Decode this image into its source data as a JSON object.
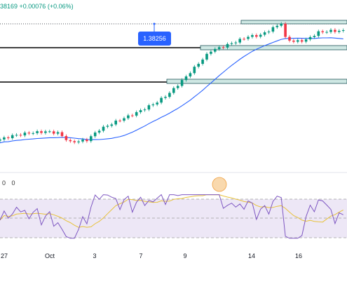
{
  "header": {
    "text": "38169 +0.00076 (+0.06%)"
  },
  "oscillator_header": {
    "text": "0 0"
  },
  "colors": {
    "up": "#089981",
    "down": "#f23645",
    "ma": "#2962ff",
    "rsi": "#7e57c2",
    "signal": "#e8c23a",
    "band": "#ede7f6",
    "zone_fill": "#cfe8e4",
    "zone_border": "#22555a"
  },
  "chart_data": [
    {
      "type": "candlestick",
      "title": "",
      "xlabel": "",
      "ylabel": "",
      "x_tick_labels": [
        "27",
        "Oct",
        "3",
        "7",
        "9",
        "14",
        "16"
      ],
      "callout_label": "1.38256",
      "annotations": [
        "horizontal level",
        "horizontal level",
        "horizontal level",
        "dotted level"
      ],
      "has_moving_average": true,
      "grid": false
    },
    {
      "type": "line",
      "title": "",
      "series": [
        {
          "color": "#7e57c2"
        },
        {
          "color": "#e8c23a"
        }
      ],
      "bands": [
        "upper dashed",
        "middle dashed",
        "lower dashed"
      ],
      "grid": false
    }
  ]
}
